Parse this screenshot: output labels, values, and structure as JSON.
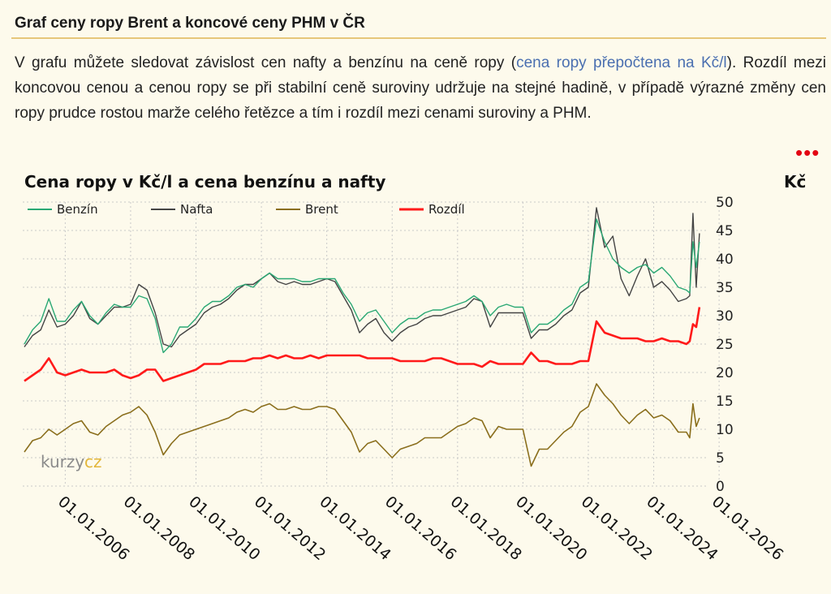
{
  "section": {
    "title": "Graf ceny ropy Brent a koncové ceny PHM v ČR",
    "intro_before_link": "V grafu můžete sledovat závislost cen nafty a benzínu na ceně ropy (",
    "intro_link": "cena ropy přepočtena na Kč/l",
    "intro_after_link": "). Rozdíl mezi koncovou cenou a cenou ropy se při stabilní ceně suroviny udržuje na stejné hadině, v případě výrazné změny cen ropy prudce rostou marže celého řetězce a tím i rozdíl mezi cenami suroviny a PHM.",
    "more_dots": "•••"
  },
  "watermark": {
    "part1": "kurzy",
    "part2": "cz"
  },
  "colors": {
    "benzin": "#2aa874",
    "nafta": "#444444",
    "brent": "#8a6e1c",
    "rozdil": "#ff1a1a",
    "grid": "#c9c9c9"
  },
  "chart_data": {
    "type": "line",
    "title": "Cena ropy v Kč/l a cena benzínu a nafty",
    "ylabel": "Kč",
    "ylim": [
      0,
      50
    ],
    "yticks": [
      0,
      5,
      10,
      15,
      20,
      25,
      30,
      35,
      40,
      45,
      50
    ],
    "xlim": [
      2004.7,
      2025.6
    ],
    "xticks": [
      "01.01.2006",
      "01.01.2008",
      "01.01.2010",
      "01.01.2012",
      "01.01.2014",
      "01.01.2016",
      "01.01.2018",
      "01.01.2020",
      "01.01.2022",
      "01.01.2024",
      "01.01.2026"
    ],
    "grid": true,
    "legend_position": "top",
    "x": [
      2004.75,
      2005.0,
      2005.25,
      2005.5,
      2005.75,
      2006.0,
      2006.25,
      2006.5,
      2006.75,
      2007.0,
      2007.25,
      2007.5,
      2007.75,
      2008.0,
      2008.25,
      2008.5,
      2008.75,
      2009.0,
      2009.25,
      2009.5,
      2009.75,
      2010.0,
      2010.25,
      2010.5,
      2010.75,
      2011.0,
      2011.25,
      2011.5,
      2011.75,
      2012.0,
      2012.25,
      2012.5,
      2012.75,
      2013.0,
      2013.25,
      2013.5,
      2013.75,
      2014.0,
      2014.25,
      2014.5,
      2014.75,
      2015.0,
      2015.25,
      2015.5,
      2015.75,
      2016.0,
      2016.25,
      2016.5,
      2016.75,
      2017.0,
      2017.25,
      2017.5,
      2017.75,
      2018.0,
      2018.25,
      2018.5,
      2018.75,
      2019.0,
      2019.25,
      2019.5,
      2019.75,
      2020.0,
      2020.25,
      2020.5,
      2020.75,
      2021.0,
      2021.25,
      2021.5,
      2021.75,
      2022.0,
      2022.25,
      2022.5,
      2022.75,
      2023.0,
      2023.25,
      2023.5,
      2023.75,
      2024.0,
      2024.25,
      2024.5,
      2024.75,
      2025.0,
      2025.1,
      2025.2,
      2025.3,
      2025.4
    ],
    "series": [
      {
        "name": "Benzín",
        "values": [
          25.0,
          27.5,
          29.0,
          33.0,
          29.0,
          29.0,
          31.0,
          32.5,
          30.0,
          28.5,
          30.5,
          32.0,
          31.5,
          31.5,
          33.5,
          33.0,
          29.5,
          23.5,
          25.0,
          28.0,
          28.0,
          29.5,
          31.5,
          32.5,
          32.5,
          33.5,
          35.0,
          35.5,
          35.0,
          36.5,
          37.5,
          36.5,
          36.5,
          36.5,
          36.0,
          36.0,
          36.5,
          36.5,
          36.5,
          34.0,
          32.0,
          29.0,
          30.5,
          31.0,
          29.0,
          27.0,
          28.5,
          29.5,
          29.5,
          30.5,
          31.0,
          31.0,
          31.5,
          32.0,
          32.5,
          33.5,
          32.5,
          30.0,
          31.5,
          32.0,
          31.5,
          31.5,
          27.0,
          28.5,
          28.5,
          29.5,
          31.0,
          32.0,
          35.0,
          36.0,
          47.0,
          43.0,
          40.0,
          38.5,
          37.5,
          38.5,
          39.0,
          37.5,
          38.5,
          37.0,
          35.0,
          34.5,
          34.0,
          43.0,
          38.5,
          43.0
        ]
      },
      {
        "name": "Nafta",
        "values": [
          24.5,
          26.5,
          27.5,
          31.0,
          28.0,
          28.5,
          30.0,
          32.5,
          29.5,
          28.5,
          30.0,
          31.5,
          31.5,
          32.0,
          35.5,
          34.5,
          30.5,
          25.0,
          24.5,
          26.5,
          27.5,
          28.5,
          30.5,
          31.5,
          32.0,
          33.0,
          34.5,
          35.5,
          35.5,
          36.5,
          37.5,
          36.0,
          35.5,
          36.0,
          35.5,
          35.5,
          36.0,
          36.5,
          36.0,
          33.5,
          31.0,
          27.0,
          28.5,
          29.5,
          27.0,
          25.5,
          27.0,
          28.0,
          28.5,
          29.5,
          30.0,
          30.0,
          30.5,
          31.0,
          31.5,
          33.0,
          32.5,
          28.0,
          30.5,
          30.5,
          30.5,
          30.5,
          26.0,
          27.5,
          27.5,
          28.5,
          30.0,
          31.0,
          34.0,
          35.0,
          49.0,
          42.0,
          44.0,
          36.5,
          33.5,
          37.0,
          40.0,
          35.0,
          36.0,
          34.5,
          32.5,
          33.0,
          33.5,
          48.0,
          35.0,
          44.5
        ]
      },
      {
        "name": "Brent",
        "values": [
          6.0,
          8.0,
          8.5,
          10.0,
          9.0,
          10.0,
          11.0,
          11.5,
          9.5,
          9.0,
          10.5,
          11.5,
          12.5,
          13.0,
          14.0,
          12.5,
          9.5,
          5.5,
          7.5,
          9.0,
          9.5,
          10.0,
          10.5,
          11.0,
          11.5,
          12.0,
          13.0,
          13.5,
          13.0,
          14.0,
          14.5,
          13.5,
          13.5,
          14.0,
          13.5,
          13.5,
          14.0,
          14.0,
          13.5,
          11.5,
          9.5,
          6.0,
          7.5,
          8.0,
          6.5,
          5.0,
          6.5,
          7.0,
          7.5,
          8.5,
          8.5,
          8.5,
          9.5,
          10.5,
          11.0,
          12.0,
          11.5,
          8.5,
          10.5,
          10.0,
          10.0,
          10.0,
          3.5,
          6.5,
          6.5,
          8.0,
          9.5,
          10.5,
          13.0,
          14.0,
          18.0,
          16.0,
          14.5,
          12.5,
          11.0,
          12.5,
          13.5,
          12.0,
          12.5,
          11.5,
          9.5,
          9.5,
          8.5,
          14.5,
          10.5,
          12.0
        ]
      },
      {
        "name": "Rozdíl",
        "values": [
          18.5,
          19.5,
          20.5,
          22.5,
          20.0,
          19.5,
          20.0,
          20.5,
          20.0,
          20.0,
          20.0,
          20.5,
          19.5,
          19.0,
          19.5,
          20.5,
          20.5,
          18.5,
          19.0,
          19.5,
          20.0,
          20.5,
          21.5,
          21.5,
          21.5,
          22.0,
          22.0,
          22.0,
          22.5,
          22.5,
          23.0,
          22.5,
          23.0,
          22.5,
          22.5,
          23.0,
          22.5,
          23.0,
          23.0,
          23.0,
          23.0,
          23.0,
          22.5,
          22.5,
          22.5,
          22.5,
          22.0,
          22.0,
          22.0,
          22.0,
          22.5,
          22.5,
          22.0,
          21.5,
          21.5,
          21.5,
          21.0,
          22.0,
          21.5,
          21.5,
          21.5,
          21.5,
          23.5,
          22.0,
          22.0,
          21.5,
          21.5,
          21.5,
          22.0,
          22.0,
          29.0,
          27.0,
          26.5,
          26.0,
          26.0,
          26.0,
          25.5,
          25.5,
          26.0,
          25.5,
          25.5,
          25.0,
          25.5,
          28.5,
          28.0,
          31.5
        ]
      }
    ]
  }
}
